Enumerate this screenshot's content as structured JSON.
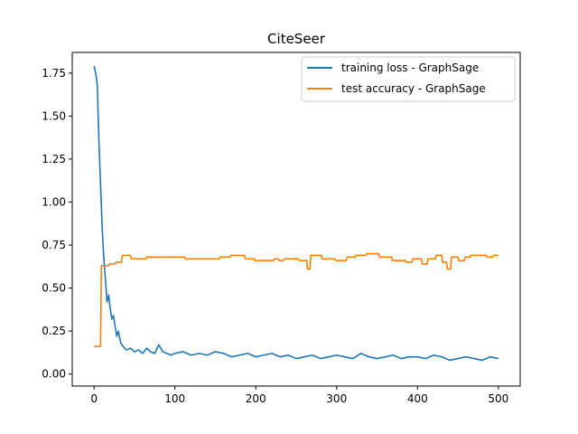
{
  "chart_data": {
    "type": "line",
    "title": "CiteSeer",
    "xlabel": "",
    "ylabel": "",
    "xlim": [
      -27,
      527
    ],
    "ylim": [
      -0.07,
      1.87
    ],
    "xticks": [
      0,
      100,
      200,
      300,
      400,
      500
    ],
    "yticks": [
      0.0,
      0.25,
      0.5,
      0.75,
      1.0,
      1.25,
      1.5,
      1.75
    ],
    "xtick_labels": [
      "0",
      "100",
      "200",
      "300",
      "400",
      "500"
    ],
    "ytick_labels": [
      "0.00",
      "0.25",
      "0.50",
      "0.75",
      "1.00",
      "1.25",
      "1.50",
      "1.75"
    ],
    "grid": false,
    "legend_position": "top-right",
    "series": [
      {
        "name": "training loss - GraphSage",
        "color": "#1f77b4",
        "x": [
          0,
          2,
          4,
          6,
          8,
          10,
          12,
          14,
          16,
          18,
          20,
          22,
          24,
          26,
          28,
          30,
          33,
          36,
          40,
          45,
          50,
          55,
          60,
          65,
          70,
          75,
          80,
          85,
          90,
          95,
          100,
          110,
          120,
          130,
          140,
          150,
          160,
          170,
          180,
          190,
          200,
          210,
          220,
          230,
          240,
          250,
          260,
          270,
          280,
          290,
          300,
          310,
          320,
          330,
          340,
          350,
          360,
          370,
          380,
          390,
          400,
          410,
          420,
          430,
          440,
          450,
          460,
          470,
          480,
          490,
          500
        ],
        "y": [
          1.79,
          1.75,
          1.68,
          1.35,
          1.1,
          0.85,
          0.68,
          0.55,
          0.42,
          0.46,
          0.38,
          0.32,
          0.34,
          0.28,
          0.22,
          0.25,
          0.18,
          0.16,
          0.14,
          0.15,
          0.13,
          0.14,
          0.12,
          0.15,
          0.13,
          0.12,
          0.17,
          0.13,
          0.12,
          0.11,
          0.12,
          0.13,
          0.11,
          0.12,
          0.11,
          0.13,
          0.12,
          0.1,
          0.11,
          0.12,
          0.1,
          0.11,
          0.12,
          0.1,
          0.11,
          0.09,
          0.1,
          0.11,
          0.09,
          0.1,
          0.11,
          0.1,
          0.09,
          0.12,
          0.1,
          0.09,
          0.1,
          0.11,
          0.09,
          0.1,
          0.1,
          0.09,
          0.11,
          0.1,
          0.08,
          0.09,
          0.1,
          0.09,
          0.08,
          0.1,
          0.09
        ]
      },
      {
        "name": "test accuracy - GraphSage",
        "color": "#ff7f0e",
        "x": [
          0,
          8,
          9,
          14,
          15,
          18,
          19,
          26,
          27,
          34,
          35,
          45,
          46,
          64,
          65,
          70,
          71,
          95,
          96,
          112,
          113,
          155,
          156,
          168,
          169,
          186,
          187,
          198,
          199,
          222,
          223,
          228,
          229,
          234,
          235,
          253,
          254,
          263,
          264,
          267,
          268,
          281,
          282,
          298,
          299,
          312,
          313,
          323,
          324,
          336,
          337,
          352,
          353,
          368,
          369,
          385,
          386,
          393,
          394,
          405,
          406,
          412,
          413,
          422,
          423,
          430,
          431,
          436,
          437,
          441,
          442,
          450,
          451,
          458,
          459,
          465,
          466,
          485,
          486,
          493,
          494,
          500
        ],
        "y": [
          0.16,
          0.16,
          0.63,
          0.63,
          0.63,
          0.63,
          0.64,
          0.64,
          0.65,
          0.65,
          0.69,
          0.69,
          0.67,
          0.67,
          0.68,
          0.68,
          0.68,
          0.68,
          0.68,
          0.68,
          0.67,
          0.67,
          0.68,
          0.68,
          0.69,
          0.69,
          0.67,
          0.67,
          0.66,
          0.66,
          0.67,
          0.67,
          0.66,
          0.66,
          0.67,
          0.67,
          0.66,
          0.66,
          0.61,
          0.61,
          0.69,
          0.69,
          0.67,
          0.67,
          0.66,
          0.66,
          0.68,
          0.68,
          0.69,
          0.69,
          0.7,
          0.7,
          0.68,
          0.68,
          0.66,
          0.66,
          0.65,
          0.65,
          0.67,
          0.67,
          0.64,
          0.64,
          0.67,
          0.67,
          0.69,
          0.69,
          0.65,
          0.65,
          0.61,
          0.61,
          0.68,
          0.68,
          0.66,
          0.66,
          0.68,
          0.68,
          0.69,
          0.69,
          0.68,
          0.68,
          0.69,
          0.69
        ]
      }
    ]
  }
}
